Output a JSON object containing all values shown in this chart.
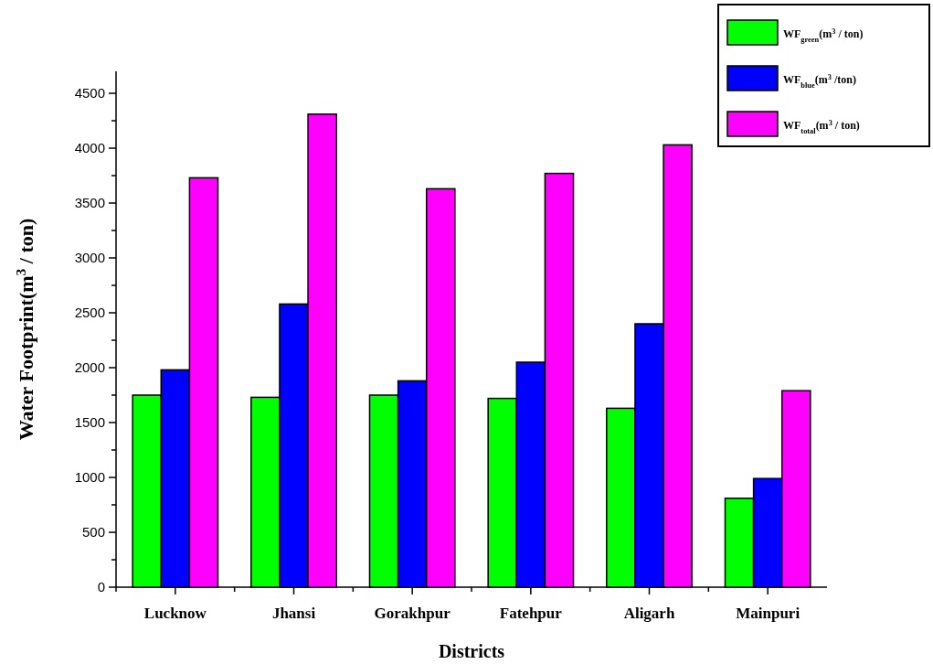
{
  "chart_data": {
    "type": "bar",
    "xlabel": "Districts",
    "ylabel": "Water Footprint(m$^{3}$ / ton)",
    "categories": [
      "Lucknow",
      "Jhansi",
      "Gorakhpur",
      "Fatehpur",
      "Aligarh",
      "Mainpuri"
    ],
    "series": [
      {
        "name": "WF$_{green}$(m$^{3}$ / ton)",
        "color": "#00ff00",
        "values": [
          1750,
          1730,
          1750,
          1720,
          1630,
          810
        ]
      },
      {
        "name": "WF$_{blue}$(m$^{3}$ /ton)",
        "color": "#0000ff",
        "values": [
          1980,
          2580,
          1880,
          2050,
          2400,
          990
        ]
      },
      {
        "name": "WF$_{total}$(m$^{3}$ / ton)",
        "color": "#ff00ff",
        "values": [
          3730,
          4310,
          3630,
          3770,
          4030,
          1790
        ]
      }
    ],
    "ylim": [
      0,
      4700
    ],
    "yticks": [
      0,
      {
        "value": 250,
        "label": null
      },
      500,
      {
        "value": 750,
        "label": null
      },
      1000,
      {
        "value": 1250,
        "label": null
      },
      1500,
      {
        "value": 1750,
        "label": null
      },
      2000,
      {
        "value": 2250,
        "label": null
      },
      2500,
      {
        "value": 2750,
        "label": null
      },
      3000,
      {
        "value": 3250,
        "label": null
      },
      3500,
      {
        "value": 3750,
        "label": null
      },
      4000,
      {
        "value": 4250,
        "label": null
      },
      4500
    ],
    "legend": "top right",
    "grid": false
  }
}
